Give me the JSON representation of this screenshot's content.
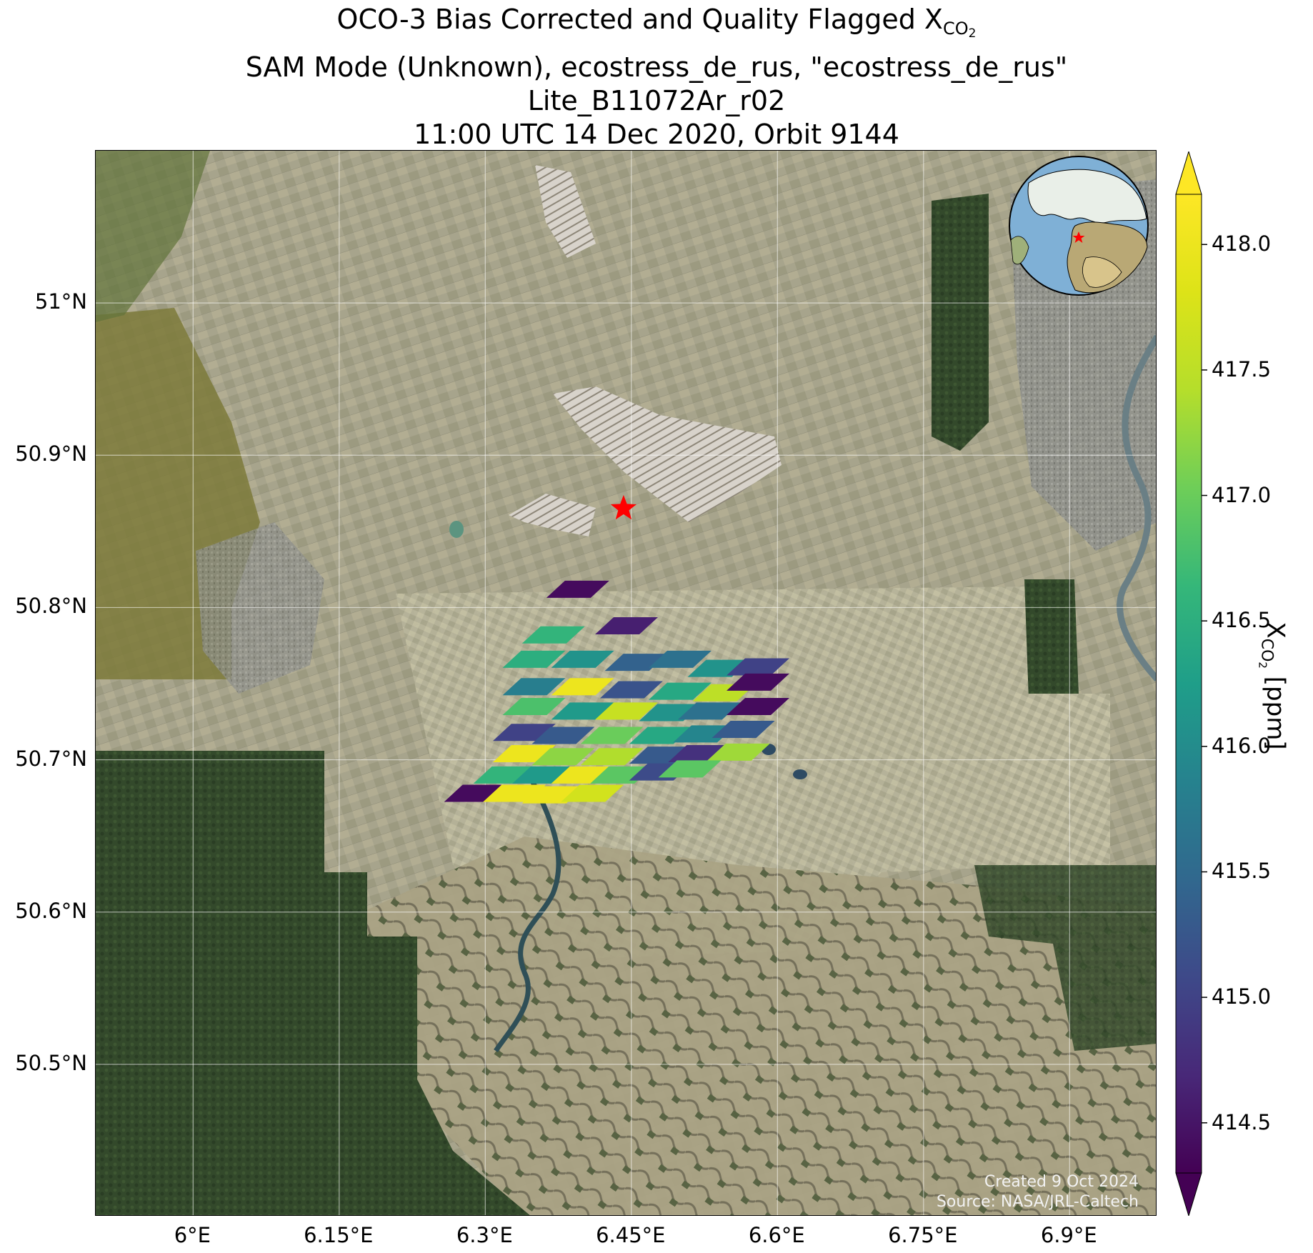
{
  "title": {
    "line1_prefix": "OCO-3 Bias Corrected and Quality Flagged X",
    "line1_sub": "CO",
    "line1_sub2": "2",
    "line2": "SAM Mode (Unknown), ecostress_de_rus, \"ecostress_de_rus\"",
    "line3": "Lite_B11072Ar_r02",
    "line4": "11:00 UTC 14 Dec 2020, Orbit 9144"
  },
  "map": {
    "extent": {
      "lon_min": 5.9,
      "lon_max": 6.99,
      "lat_min": 50.4,
      "lat_max": 51.1
    },
    "lat_ticks": [
      {
        "value": 51.0,
        "label": "51°N"
      },
      {
        "value": 50.9,
        "label": "50.9°N"
      },
      {
        "value": 50.8,
        "label": "50.8°N"
      },
      {
        "value": 50.7,
        "label": "50.7°N"
      },
      {
        "value": 50.6,
        "label": "50.6°N"
      },
      {
        "value": 50.5,
        "label": "50.5°N"
      }
    ],
    "lon_ticks": [
      {
        "value": 6.0,
        "label": "6°E"
      },
      {
        "value": 6.15,
        "label": "6.15°E"
      },
      {
        "value": 6.3,
        "label": "6.3°E"
      },
      {
        "value": 6.45,
        "label": "6.45°E"
      },
      {
        "value": 6.6,
        "label": "6.6°E"
      },
      {
        "value": 6.75,
        "label": "6.75°E"
      },
      {
        "value": 6.9,
        "label": "6.9°E"
      }
    ],
    "target": {
      "lon": 6.442,
      "lat": 50.865,
      "marker": "red-star"
    },
    "footprints": [
      {
        "lon": 6.395,
        "lat": 50.812,
        "xco2": 414.4
      },
      {
        "lon": 6.445,
        "lat": 50.788,
        "xco2": 414.6
      },
      {
        "lon": 6.37,
        "lat": 50.782,
        "xco2": 416.6
      },
      {
        "lon": 6.35,
        "lat": 50.766,
        "xco2": 416.5
      },
      {
        "lon": 6.4,
        "lat": 50.766,
        "xco2": 416.1
      },
      {
        "lon": 6.455,
        "lat": 50.764,
        "xco2": 415.4
      },
      {
        "lon": 6.5,
        "lat": 50.766,
        "xco2": 415.6
      },
      {
        "lon": 6.54,
        "lat": 50.76,
        "xco2": 416.1
      },
      {
        "lon": 6.58,
        "lat": 50.761,
        "xco2": 415.0
      },
      {
        "lon": 6.35,
        "lat": 50.748,
        "xco2": 415.8
      },
      {
        "lon": 6.4,
        "lat": 50.748,
        "xco2": 418.0
      },
      {
        "lon": 6.45,
        "lat": 50.746,
        "xco2": 415.2
      },
      {
        "lon": 6.5,
        "lat": 50.745,
        "xco2": 416.4
      },
      {
        "lon": 6.545,
        "lat": 50.744,
        "xco2": 417.5
      },
      {
        "lon": 6.58,
        "lat": 50.751,
        "xco2": 414.4
      },
      {
        "lon": 6.35,
        "lat": 50.735,
        "xco2": 416.8
      },
      {
        "lon": 6.4,
        "lat": 50.732,
        "xco2": 416.2
      },
      {
        "lon": 6.445,
        "lat": 50.732,
        "xco2": 417.6
      },
      {
        "lon": 6.49,
        "lat": 50.731,
        "xco2": 416.1
      },
      {
        "lon": 6.53,
        "lat": 50.732,
        "xco2": 415.6
      },
      {
        "lon": 6.58,
        "lat": 50.735,
        "xco2": 414.4
      },
      {
        "lon": 6.34,
        "lat": 50.718,
        "xco2": 415.0
      },
      {
        "lon": 6.38,
        "lat": 50.716,
        "xco2": 415.3
      },
      {
        "lon": 6.43,
        "lat": 50.716,
        "xco2": 417.0
      },
      {
        "lon": 6.48,
        "lat": 50.716,
        "xco2": 416.4
      },
      {
        "lon": 6.525,
        "lat": 50.717,
        "xco2": 415.9
      },
      {
        "lon": 6.565,
        "lat": 50.72,
        "xco2": 415.3
      },
      {
        "lon": 6.34,
        "lat": 50.704,
        "xco2": 418.0
      },
      {
        "lon": 6.38,
        "lat": 50.702,
        "xco2": 417.2
      },
      {
        "lon": 6.43,
        "lat": 50.702,
        "xco2": 417.4
      },
      {
        "lon": 6.48,
        "lat": 50.703,
        "xco2": 415.3
      },
      {
        "lon": 6.52,
        "lat": 50.704,
        "xco2": 414.8
      },
      {
        "lon": 6.56,
        "lat": 50.705,
        "xco2": 417.3
      },
      {
        "lon": 6.32,
        "lat": 50.69,
        "xco2": 416.6
      },
      {
        "lon": 6.36,
        "lat": 50.69,
        "xco2": 416.2
      },
      {
        "lon": 6.4,
        "lat": 50.69,
        "xco2": 418.0
      },
      {
        "lon": 6.44,
        "lat": 50.69,
        "xco2": 416.9
      },
      {
        "lon": 6.48,
        "lat": 50.692,
        "xco2": 415.1
      },
      {
        "lon": 6.51,
        "lat": 50.694,
        "xco2": 416.9
      },
      {
        "lon": 6.29,
        "lat": 50.678,
        "xco2": 414.4
      },
      {
        "lon": 6.33,
        "lat": 50.678,
        "xco2": 418.0
      },
      {
        "lon": 6.37,
        "lat": 50.677,
        "xco2": 418.0
      },
      {
        "lon": 6.41,
        "lat": 50.678,
        "xco2": 417.7
      }
    ]
  },
  "colorbar": {
    "label_prefix": "X",
    "label_sub": "CO",
    "label_sub2": "2",
    "label_suffix": " [ppm]",
    "vmin": 414.3,
    "vmax": 418.2,
    "colormap": "viridis",
    "ticks": [
      "418.0",
      "417.5",
      "417.0",
      "416.5",
      "416.0",
      "415.5",
      "415.0",
      "414.5"
    ]
  },
  "credit": {
    "line1": "Created 9 Oct 2024",
    "line2": "Source: NASA/JRL-Caltech"
  }
}
